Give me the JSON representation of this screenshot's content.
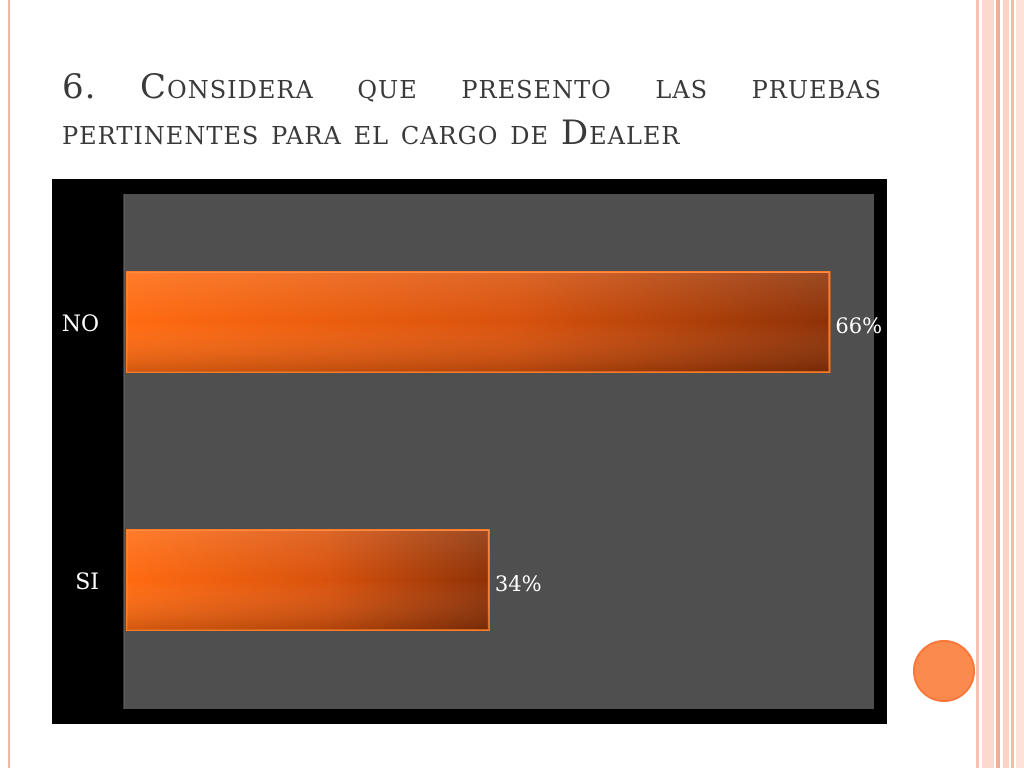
{
  "slide": {
    "title": "6. Considera que presento las pruebas pertinentes para el cargo de Dealer"
  },
  "colors": {
    "bar_light": "#ff6a10",
    "bar_dark": "#8e3106",
    "plot_bg": "#4f4f4f",
    "frame_bg": "#000000",
    "label_text": "#ffffff",
    "accent": "#fb8a4f"
  },
  "chart_data": {
    "type": "bar",
    "orientation": "horizontal",
    "categories": [
      "NO",
      "SI"
    ],
    "values": [
      66,
      34
    ],
    "data_labels": [
      "66%",
      "34%"
    ],
    "xlim": [
      0,
      70
    ],
    "grid": false,
    "legend": "none"
  }
}
